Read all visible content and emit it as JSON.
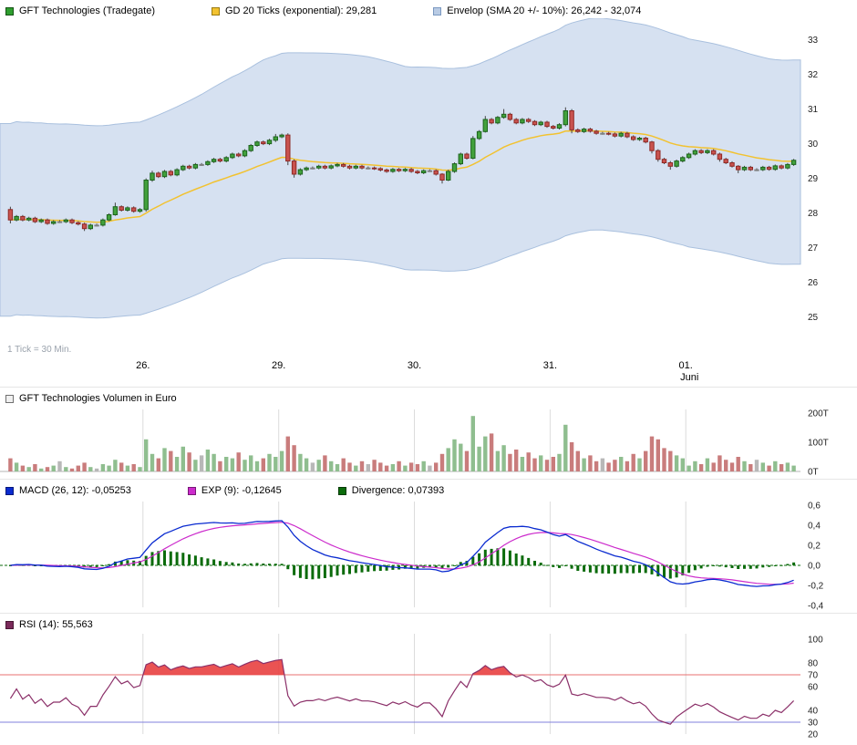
{
  "chart_data": [
    {
      "type": "candlestick",
      "legend": [
        {
          "label": "GFT Technologies (Tradegate)",
          "swatch": "#2f9e2f",
          "swatch_border": "#145214"
        },
        {
          "label": "GD 20 Ticks (exponential): 29,281",
          "swatch": "#f2c230",
          "swatch_border": "#9a7b10"
        },
        {
          "label": "Envelop (SMA 20 +/- 10%): 26,242 - 32,074",
          "swatch": "#b9cbe4",
          "swatch_border": "#7a98c0"
        }
      ],
      "footnote": "1 Tick = 30 Min.",
      "tick_interval": "30 Min",
      "y_ticks": [
        {
          "label": "33",
          "value": 33
        },
        {
          "label": "32",
          "value": 32
        },
        {
          "label": "31",
          "value": 31
        },
        {
          "label": "30",
          "value": 30
        },
        {
          "label": "29",
          "value": 29
        },
        {
          "label": "28",
          "value": 28
        },
        {
          "label": "27",
          "value": 27
        },
        {
          "label": "26",
          "value": 26
        },
        {
          "label": "25",
          "value": 25
        }
      ],
      "x_labels": [
        {
          "label": "26.",
          "index": 22
        },
        {
          "label": "29.",
          "index": 44
        },
        {
          "label": "30.",
          "index": 66
        },
        {
          "label": "31.",
          "index": 88
        },
        {
          "label": "01.",
          "index": 110
        }
      ],
      "month_label": {
        "label": "Juni",
        "index": 110
      },
      "indicators": {
        "gd20": {
          "type": "exponential",
          "period": 20,
          "last": "29,281"
        },
        "envelope": {
          "type": "SMA",
          "period": 20,
          "pct": 10,
          "last_low": "26,242",
          "last_high": "32,074"
        }
      },
      "colors": {
        "up": "#42a13c",
        "up_border": "#1c641c",
        "down": "#c9534f",
        "down_border": "#8f2a26",
        "doji": "#d9d9d9",
        "doji_border": "#808080",
        "wick": "#444444",
        "gd20": "#f2c230",
        "envelope_fill": "#ccdaee",
        "envelope_border": "#a9c0de"
      },
      "candles": [
        [
          28.1,
          27.8,
          27.7,
          28.18
        ],
        [
          27.8,
          27.9
        ],
        [
          27.9,
          27.8
        ],
        [
          27.8,
          27.85
        ],
        [
          27.85,
          27.75
        ],
        [
          27.75,
          27.8
        ],
        [
          27.8,
          27.7
        ],
        [
          27.7,
          27.75
        ],
        [
          27.75,
          27.75
        ],
        [
          27.75,
          27.8
        ],
        [
          27.8,
          27.72
        ],
        [
          27.72,
          27.68
        ],
        [
          27.68,
          27.55,
          27.48,
          27.72
        ],
        [
          27.55,
          27.65
        ],
        [
          27.65,
          27.65
        ],
        [
          27.65,
          27.8
        ],
        [
          27.8,
          27.95
        ],
        [
          27.95,
          28.18,
          27.92,
          28.3
        ],
        [
          28.18,
          28.08
        ],
        [
          28.08,
          28.15
        ],
        [
          28.15,
          28.05
        ],
        [
          28.05,
          28.1
        ],
        [
          28.1,
          28.95,
          28.04,
          29.0
        ],
        [
          28.95,
          29.15,
          28.9,
          29.22
        ],
        [
          29.15,
          29.05
        ],
        [
          29.05,
          29.2
        ],
        [
          29.2,
          29.1
        ],
        [
          29.1,
          29.25
        ],
        [
          29.25,
          29.35
        ],
        [
          29.35,
          29.3
        ],
        [
          29.3,
          29.4
        ],
        [
          29.4,
          29.4
        ],
        [
          29.4,
          29.48
        ],
        [
          29.48,
          29.55
        ],
        [
          29.55,
          29.5
        ],
        [
          29.5,
          29.6
        ],
        [
          29.6,
          29.7
        ],
        [
          29.7,
          29.65
        ],
        [
          29.65,
          29.8
        ],
        [
          29.8,
          29.95
        ],
        [
          29.95,
          30.05
        ],
        [
          30.05,
          30.0
        ],
        [
          30.0,
          30.1
        ],
        [
          30.1,
          30.2,
          30.05,
          30.28
        ],
        [
          30.2,
          30.25
        ],
        [
          30.25,
          29.5,
          29.38,
          30.3
        ],
        [
          29.5,
          29.12,
          29.02,
          29.55
        ],
        [
          29.12,
          29.25
        ],
        [
          29.25,
          29.3
        ],
        [
          29.3,
          29.3
        ],
        [
          29.3,
          29.35
        ],
        [
          29.35,
          29.3
        ],
        [
          29.3,
          29.36
        ],
        [
          29.36,
          29.4
        ],
        [
          29.4,
          29.35
        ],
        [
          29.35,
          29.3
        ],
        [
          29.3,
          29.35
        ],
        [
          29.35,
          29.3
        ],
        [
          29.3,
          29.3
        ],
        [
          29.3,
          29.28
        ],
        [
          29.28,
          29.24
        ],
        [
          29.24,
          29.2
        ],
        [
          29.2,
          29.26
        ],
        [
          29.26,
          29.22
        ],
        [
          29.22,
          29.26
        ],
        [
          29.26,
          29.2
        ],
        [
          29.2,
          29.16
        ],
        [
          29.16,
          29.22
        ],
        [
          29.22,
          29.22
        ],
        [
          29.22,
          29.12
        ],
        [
          29.12,
          28.95,
          28.85,
          29.15
        ],
        [
          28.95,
          29.2,
          28.92,
          29.25
        ],
        [
          29.2,
          29.42
        ],
        [
          29.42,
          29.7
        ],
        [
          29.7,
          29.58
        ],
        [
          29.58,
          30.15,
          29.55,
          30.22
        ],
        [
          30.15,
          30.35
        ],
        [
          30.35,
          30.7,
          30.32,
          30.8
        ],
        [
          30.7,
          30.6
        ],
        [
          30.6,
          30.76
        ],
        [
          30.76,
          30.85,
          30.72,
          31.0
        ],
        [
          30.85,
          30.7
        ],
        [
          30.7,
          30.6
        ],
        [
          30.6,
          30.7
        ],
        [
          30.7,
          30.64
        ],
        [
          30.64,
          30.55
        ],
        [
          30.55,
          30.62
        ],
        [
          30.62,
          30.5
        ],
        [
          30.5,
          30.45
        ],
        [
          30.45,
          30.55
        ],
        [
          30.55,
          30.95,
          30.5,
          31.05
        ],
        [
          30.95,
          30.4,
          30.3,
          31.0
        ],
        [
          30.4,
          30.35
        ],
        [
          30.35,
          30.42
        ],
        [
          30.42,
          30.36
        ],
        [
          30.36,
          30.3
        ],
        [
          30.3,
          30.3
        ],
        [
          30.3,
          30.28
        ],
        [
          30.28,
          30.22
        ],
        [
          30.22,
          30.3
        ],
        [
          30.3,
          30.2
        ],
        [
          30.2,
          30.12
        ],
        [
          30.12,
          30.16
        ],
        [
          30.16,
          30.05
        ],
        [
          30.05,
          29.8,
          29.72,
          30.08
        ],
        [
          29.8,
          29.55,
          29.48,
          29.84
        ],
        [
          29.55,
          29.45
        ],
        [
          29.45,
          29.35,
          29.25,
          29.5
        ],
        [
          29.35,
          29.5
        ],
        [
          29.5,
          29.6
        ],
        [
          29.6,
          29.7
        ],
        [
          29.7,
          29.8
        ],
        [
          29.8,
          29.74
        ],
        [
          29.74,
          29.8
        ],
        [
          29.8,
          29.7
        ],
        [
          29.7,
          29.55,
          29.48,
          29.74
        ],
        [
          29.55,
          29.45
        ],
        [
          29.45,
          29.35
        ],
        [
          29.35,
          29.25,
          29.15,
          29.38
        ],
        [
          29.25,
          29.32
        ],
        [
          29.32,
          29.25
        ],
        [
          29.25,
          29.25
        ],
        [
          29.25,
          29.32
        ],
        [
          29.32,
          29.26
        ],
        [
          29.26,
          29.36
        ],
        [
          29.36,
          29.3
        ],
        [
          29.3,
          29.4
        ],
        [
          29.4,
          29.52
        ]
      ]
    },
    {
      "type": "bar",
      "legend": [
        {
          "label": "GFT Technologies Volumen in Euro",
          "swatch": "#f0f0f0",
          "swatch_border": "#707070"
        }
      ],
      "y_ticks": [
        {
          "label": "200T",
          "value": 200
        },
        {
          "label": "100T",
          "value": 100
        },
        {
          "label": "0T",
          "value": 0
        }
      ],
      "colors": {
        "up": "#8fbe8f",
        "down": "#c97c7c",
        "doji": "#b8b8b8",
        "baseline": "#b5b5b5",
        "grid": "#dcdcdc"
      },
      "values_thousands": [
        45,
        30,
        20,
        15,
        25,
        10,
        15,
        20,
        35,
        15,
        10,
        20,
        30,
        15,
        10,
        25,
        20,
        40,
        30,
        20,
        25,
        15,
        110,
        60,
        45,
        80,
        70,
        50,
        85,
        65,
        40,
        55,
        75,
        60,
        35,
        50,
        45,
        65,
        40,
        55,
        35,
        45,
        60,
        50,
        70,
        120,
        90,
        60,
        45,
        30,
        40,
        55,
        35,
        25,
        45,
        30,
        20,
        35,
        25,
        40,
        30,
        20,
        25,
        35,
        20,
        30,
        25,
        35,
        20,
        30,
        60,
        80,
        110,
        95,
        70,
        190,
        85,
        120,
        130,
        70,
        90,
        60,
        75,
        50,
        65,
        45,
        55,
        40,
        50,
        60,
        160,
        100,
        70,
        45,
        55,
        35,
        45,
        30,
        40,
        50,
        35,
        60,
        45,
        70,
        120,
        110,
        80,
        70,
        55,
        45,
        20,
        35,
        25,
        45,
        30,
        55,
        40,
        30,
        50,
        35,
        25,
        40,
        30,
        20,
        35,
        25,
        30,
        20
      ]
    },
    {
      "type": "line",
      "legend": [
        {
          "label": "MACD (26, 12): -0,05253",
          "swatch": "#0a2bd0",
          "swatch_border": "#06187a"
        },
        {
          "label": "EXP (9): -0,12645",
          "swatch": "#cc2bcc",
          "swatch_border": "#771877"
        },
        {
          "label": "Divergence: 0,07393",
          "swatch": "#0b6b0b",
          "swatch_border": "#053a05"
        }
      ],
      "params": {
        "slow": 26,
        "fast": 12,
        "signal": 9
      },
      "last_values": {
        "macd": "-0,05253",
        "signal": "-0,12645",
        "divergence": "0,07393"
      },
      "y_ticks": [
        {
          "label": "0,6",
          "value": 0.6
        },
        {
          "label": "0,4",
          "value": 0.4
        },
        {
          "label": "0,2",
          "value": 0.2
        },
        {
          "label": "0,0",
          "value": 0
        },
        {
          "label": "-0,2",
          "value": -0.2
        },
        {
          "label": "-0,4",
          "value": -0.4
        }
      ],
      "colors": {
        "macd": "#0a2bd0",
        "signal": "#cc2bcc",
        "divergence": "#0b6b0b",
        "grid": "#dcdcdc"
      }
    },
    {
      "type": "line",
      "legend": [
        {
          "label": "RSI (14): 55,563",
          "swatch": "#7a2a5a",
          "swatch_border": "#471733"
        }
      ],
      "period": 14,
      "last_value": "55,563",
      "levels": [
        {
          "value": 70,
          "color": "#e87070"
        },
        {
          "value": 30,
          "color": "#8080dd"
        }
      ],
      "y_ticks": [
        {
          "label": "100",
          "value": 100,
          "color": "#222222"
        },
        {
          "label": "80",
          "value": 80,
          "color": "#222222"
        },
        {
          "label": "70",
          "value": 70,
          "color": "#e06666"
        },
        {
          "label": "60",
          "value": 60,
          "color": "#222222"
        },
        {
          "label": "40",
          "value": 40,
          "color": "#222222"
        },
        {
          "label": "30",
          "value": 30,
          "color": "#7b7bdc"
        },
        {
          "label": "20",
          "value": 20,
          "color": "#222222"
        }
      ],
      "colors": {
        "line": "#8b3069",
        "fill": "#e84040",
        "grid": "#dcdcdc"
      }
    }
  ]
}
